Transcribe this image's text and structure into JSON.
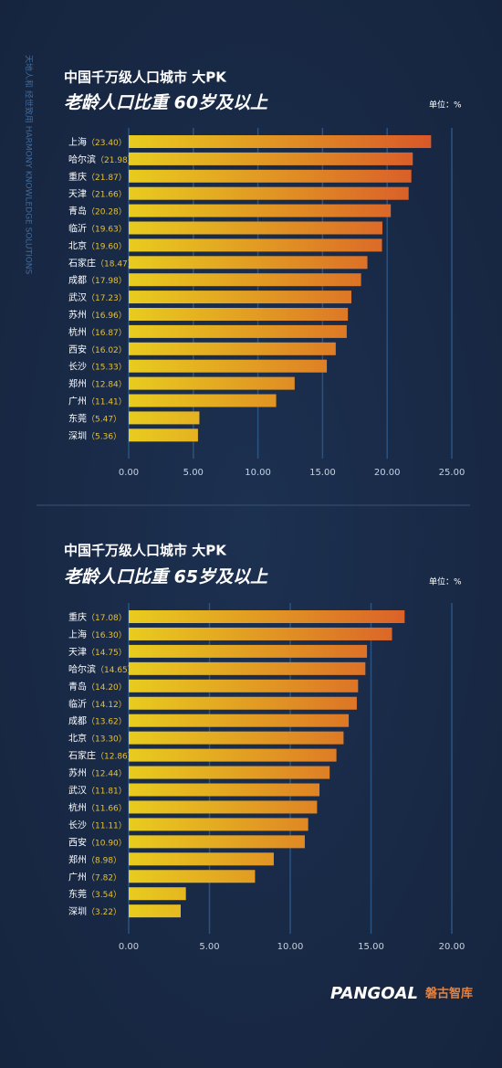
{
  "side_text": "天地人和 经世致用 HARMONY KNOWLEDGE SOLUTIONS",
  "logo": {
    "brand": "PANGOAL",
    "name": "磐古智库"
  },
  "chart_data": [
    {
      "type": "bar",
      "orientation": "horizontal",
      "title": "中国千万级人口城市 大PK",
      "subtitle": "老龄人口比重 60岁及以上",
      "unit": "单位：%",
      "categories": [
        "上海",
        "哈尔滨",
        "重庆",
        "天津",
        "青岛",
        "临沂",
        "北京",
        "石家庄",
        "成都",
        "武汉",
        "苏州",
        "杭州",
        "西安",
        "长沙",
        "郑州",
        "广州",
        "东莞",
        "深圳"
      ],
      "values": [
        23.4,
        21.98,
        21.87,
        21.66,
        20.28,
        19.63,
        19.6,
        18.47,
        17.98,
        17.23,
        16.96,
        16.87,
        16.02,
        15.33,
        12.84,
        11.41,
        5.47,
        5.36
      ],
      "value_labels": [
        "（23.40）",
        "（21.98）",
        "（21.87）",
        "（21.66）",
        "（20.28）",
        "（19.63）",
        "（19.60）",
        "（18.47）",
        "（17.98）",
        "（17.23）",
        "（16.96）",
        "（16.87）",
        "（16.02）",
        "（15.33）",
        "（12.84）",
        "（11.41）",
        "（5.47）",
        "（5.36）"
      ],
      "xlim": [
        0,
        25
      ],
      "xticks": [
        {
          "value": 0,
          "label": "0.00"
        },
        {
          "value": 5,
          "label": "5.00"
        },
        {
          "value": 10,
          "label": "10.00"
        },
        {
          "value": 15,
          "label": "15.00"
        },
        {
          "value": 20,
          "label": "20.00"
        },
        {
          "value": 25,
          "label": "25.00"
        }
      ],
      "grid": true,
      "color": [
        "#e8cc1e",
        "#d8502a"
      ]
    },
    {
      "type": "bar",
      "orientation": "horizontal",
      "title": "中国千万级人口城市 大PK",
      "subtitle": "老龄人口比重 65岁及以上",
      "unit": "单位：%",
      "categories": [
        "重庆",
        "上海",
        "天津",
        "哈尔滨",
        "青岛",
        "临沂",
        "成都",
        "北京",
        "石家庄",
        "苏州",
        "武汉",
        "杭州",
        "长沙",
        "西安",
        "郑州",
        "广州",
        "东莞",
        "深圳"
      ],
      "values": [
        17.08,
        16.3,
        14.75,
        14.65,
        14.2,
        14.12,
        13.62,
        13.3,
        12.86,
        12.44,
        11.81,
        11.66,
        11.11,
        10.9,
        8.98,
        7.82,
        3.54,
        3.22
      ],
      "value_labels": [
        "（17.08）",
        "（16.30）",
        "（14.75）",
        "（14.65）",
        "（14.20）",
        "（14.12）",
        "（13.62）",
        "（13.30）",
        "（12.86）",
        "（12.44）",
        "（11.81）",
        "（11.66）",
        "（11.11）",
        "（10.90）",
        "（8.98）",
        "（7.82）",
        "（3.54）",
        "（3.22）"
      ],
      "xlim": [
        0,
        20
      ],
      "xticks": [
        {
          "value": 0,
          "label": "0.00"
        },
        {
          "value": 5,
          "label": "5.00"
        },
        {
          "value": 10,
          "label": "10.00"
        },
        {
          "value": 15,
          "label": "15.00"
        },
        {
          "value": 20,
          "label": "20.00"
        }
      ],
      "grid": true,
      "color": [
        "#e8cc1e",
        "#d8502a"
      ]
    }
  ]
}
